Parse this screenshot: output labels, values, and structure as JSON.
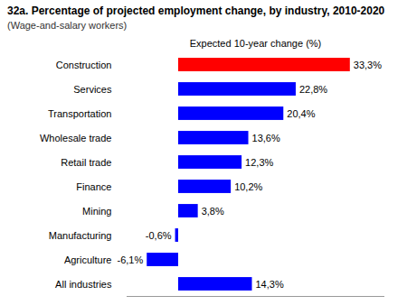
{
  "chart_data": {
    "type": "bar",
    "orientation": "horizontal",
    "title": "32a. Percentage of projected employment change, by industry, 2010-2020",
    "subtitle": "(Wage-and-salary workers)",
    "x_label": "Expected 10-year change (%)",
    "categories": [
      "Construction",
      "Services",
      "Transportation",
      "Wholesale trade",
      "Retail trade",
      "Finance",
      "Mining",
      "Manufacturing",
      "Agriculture",
      "All industries"
    ],
    "values": [
      33.3,
      22.8,
      20.4,
      13.6,
      12.3,
      10.2,
      3.8,
      -0.6,
      -6.1,
      14.3
    ],
    "value_labels": [
      "33,3%",
      "22,8%",
      "20,4%",
      "13,6%",
      "12,3%",
      "10,2%",
      "3,8%",
      "-0,6%",
      "-6,1%",
      "14,3%"
    ],
    "colors": [
      "#ff0000",
      "#0000ff",
      "#0000ff",
      "#0000ff",
      "#0000ff",
      "#0000ff",
      "#0000ff",
      "#0000ff",
      "#0000ff",
      "#0000ff"
    ],
    "xlim": [
      -10,
      40
    ],
    "data_labels": true,
    "tick_labels": "y",
    "grid": false
  }
}
